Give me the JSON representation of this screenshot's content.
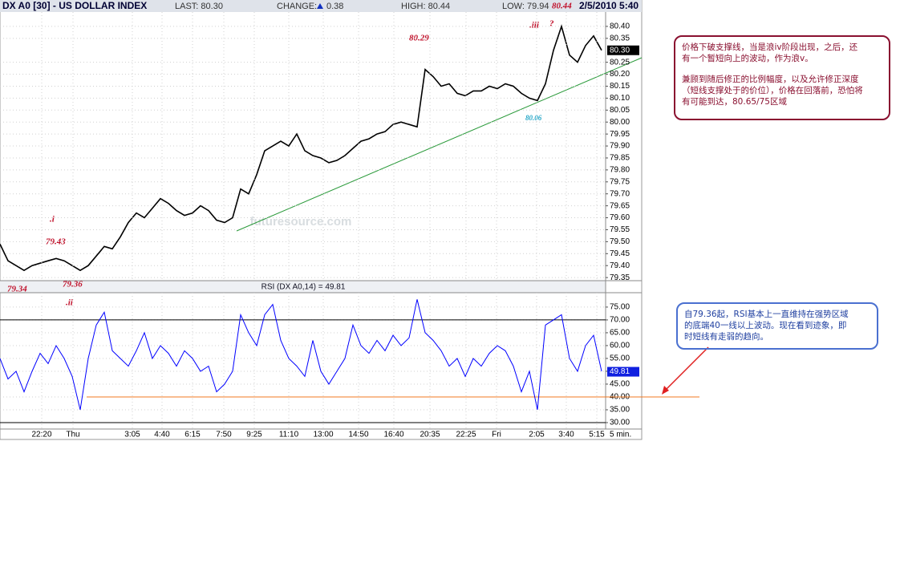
{
  "header": {
    "symbol": "DX A0 [30] - US DOLLAR INDEX",
    "last": "LAST: 80.30",
    "change_label": "CHANGE:",
    "change": "0.38",
    "high": "HIGH: 80.44",
    "low": "LOW: 79.94",
    "low_mark": "80.44",
    "datetime": "2/5/2010 5:40"
  },
  "chart_data": [
    {
      "type": "line",
      "color": "#000000",
      "xlim": [
        0,
        75
      ],
      "ylim": [
        79.337,
        80.46
      ],
      "yticks": [
        {
          "value": 80.4,
          "label": "80.40"
        },
        {
          "value": 80.35,
          "label": "80.35"
        },
        {
          "value": 80.25,
          "label": "80.25"
        },
        {
          "value": 80.2,
          "label": "80.20"
        },
        {
          "value": 80.15,
          "label": "80.15"
        },
        {
          "value": 80.1,
          "label": "80.10"
        },
        {
          "value": 80.05,
          "label": "80.05"
        },
        {
          "value": 80.0,
          "label": "80.00"
        },
        {
          "value": 79.95,
          "label": "79.95"
        },
        {
          "value": 79.9,
          "label": "79.90"
        },
        {
          "value": 79.85,
          "label": "79.85"
        },
        {
          "value": 79.8,
          "label": "79.80"
        },
        {
          "value": 79.75,
          "label": "79.75"
        },
        {
          "value": 79.7,
          "label": "79.70"
        },
        {
          "value": 79.65,
          "label": "79.65"
        },
        {
          "value": 79.6,
          "label": "79.60"
        },
        {
          "value": 79.55,
          "label": "79.55"
        },
        {
          "value": 79.5,
          "label": "79.50"
        },
        {
          "value": 79.45,
          "label": "79.45"
        },
        {
          "value": 79.4,
          "label": "79.40"
        },
        {
          "value": 79.35,
          "label": "79.35"
        }
      ],
      "last_value": {
        "value": 80.3,
        "label": "80.30"
      },
      "values": [
        79.49,
        79.42,
        79.4,
        79.38,
        79.4,
        79.41,
        79.42,
        79.43,
        79.42,
        79.4,
        79.38,
        79.4,
        79.44,
        79.48,
        79.47,
        79.52,
        79.58,
        79.62,
        79.6,
        79.64,
        79.68,
        79.66,
        79.63,
        79.61,
        79.62,
        79.65,
        79.63,
        79.59,
        79.58,
        79.6,
        79.72,
        79.7,
        79.78,
        79.88,
        79.9,
        79.92,
        79.9,
        79.95,
        79.88,
        79.86,
        79.85,
        79.83,
        79.84,
        79.86,
        79.89,
        79.92,
        79.93,
        79.95,
        79.96,
        79.99,
        80.0,
        79.99,
        79.98,
        80.22,
        80.19,
        80.15,
        80.16,
        80.12,
        80.11,
        80.13,
        80.13,
        80.15,
        80.14,
        80.16,
        80.15,
        80.12,
        80.1,
        80.09,
        80.16,
        80.3,
        80.4,
        80.28,
        80.25,
        80.32,
        80.36,
        80.3
      ],
      "watermark": "futuresource.com",
      "annotations": [
        "80.29",
        ".iii",
        "?",
        "80.06",
        ".i",
        "79.43",
        "79.34",
        "79.36",
        ".ii"
      ]
    },
    {
      "type": "line",
      "color": "#0000ff",
      "title": "RSI (DX A0,14) = 49.81",
      "xlim": [
        0,
        75
      ],
      "ylim": [
        27.5,
        80.6
      ],
      "yticks": [
        {
          "value": 75,
          "label": "75.00"
        },
        {
          "value": 70,
          "label": "70.00"
        },
        {
          "value": 65,
          "label": "65.00"
        },
        {
          "value": 60,
          "label": "60.00"
        },
        {
          "value": 55,
          "label": "55.00"
        },
        {
          "value": 50,
          "label": "50.00"
        },
        {
          "value": 45,
          "label": "45.00"
        },
        {
          "value": 40,
          "label": "40.00"
        },
        {
          "value": 35,
          "label": "35.00"
        },
        {
          "value": 30,
          "label": "30.00"
        }
      ],
      "levels": [
        {
          "value": 70,
          "color": "#000000"
        },
        {
          "value": 30,
          "color": "#000000"
        },
        {
          "value": 40,
          "color": "#f07820"
        }
      ],
      "last_value": {
        "value": 49.81,
        "label": "49.81"
      },
      "xticks": [
        {
          "value": 5.2,
          "label": "22:20"
        },
        {
          "value": 9.1,
          "label": "Thu"
        },
        {
          "value": 16.5,
          "label": "3:05"
        },
        {
          "value": 20.2,
          "label": "4:40"
        },
        {
          "value": 24,
          "label": "6:15"
        },
        {
          "value": 27.9,
          "label": "7:50"
        },
        {
          "value": 31.7,
          "label": "9:25"
        },
        {
          "value": 36,
          "label": "11:10"
        },
        {
          "value": 40.3,
          "label": "13:00"
        },
        {
          "value": 44.7,
          "label": "14:50"
        },
        {
          "value": 49.1,
          "label": "16:40"
        },
        {
          "value": 53.6,
          "label": "20:35"
        },
        {
          "value": 58.1,
          "label": "22:25"
        },
        {
          "value": 61.9,
          "label": "Fri"
        },
        {
          "value": 66.9,
          "label": "2:05"
        },
        {
          "value": 70.6,
          "label": "3:40"
        },
        {
          "value": 74.4,
          "label": "5:15"
        }
      ],
      "x_unit": "5 min.",
      "values": [
        55,
        47,
        50,
        42,
        50,
        57,
        53,
        60,
        55,
        48,
        35,
        55,
        68,
        73,
        58,
        55,
        52,
        58,
        65,
        55,
        60,
        57,
        52,
        58,
        55,
        50,
        52,
        42,
        45,
        50,
        72,
        65,
        60,
        72,
        76,
        62,
        55,
        52,
        48,
        62,
        50,
        45,
        50,
        55,
        68,
        60,
        57,
        62,
        58,
        64,
        60,
        63,
        78,
        65,
        62,
        58,
        52,
        55,
        48,
        55,
        52,
        57,
        60,
        58,
        52,
        42,
        50,
        35,
        68,
        70,
        72,
        55,
        50,
        60,
        64,
        50
      ]
    }
  ],
  "notes": [
    {
      "lines": [
        "价格下破支撑线，当是浪iv阶段出现，之后，还",
        "有一个暂短向上的波动，作为浪v。",
        "兼顾到随后修正的比例幅度，以及允许修正深度",
        "（短线支撑处于的价位），价格在回落前，恐怕将",
        "有可能到达，80.65/75区域"
      ]
    },
    {
      "lines": [
        "自79.36起，RSI基本上一直维持在强势区域",
        "的底端40一线以上波动。现在看到迹象，即",
        "时短线有走弱的趋向。"
      ]
    }
  ]
}
